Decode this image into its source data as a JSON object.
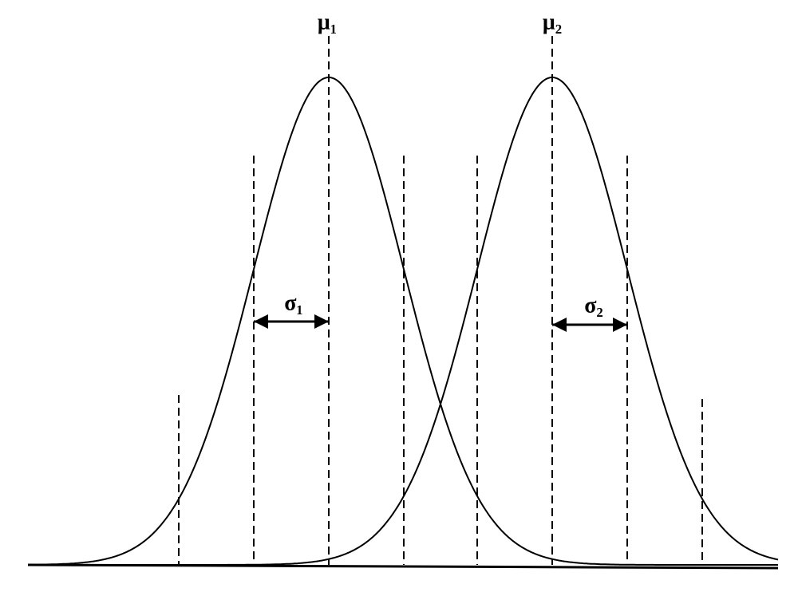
{
  "labels": {
    "mu1": "μ₁",
    "mu2": "μ₂",
    "sigma1": "σ₁",
    "sigma2": "σ₂"
  }
}
